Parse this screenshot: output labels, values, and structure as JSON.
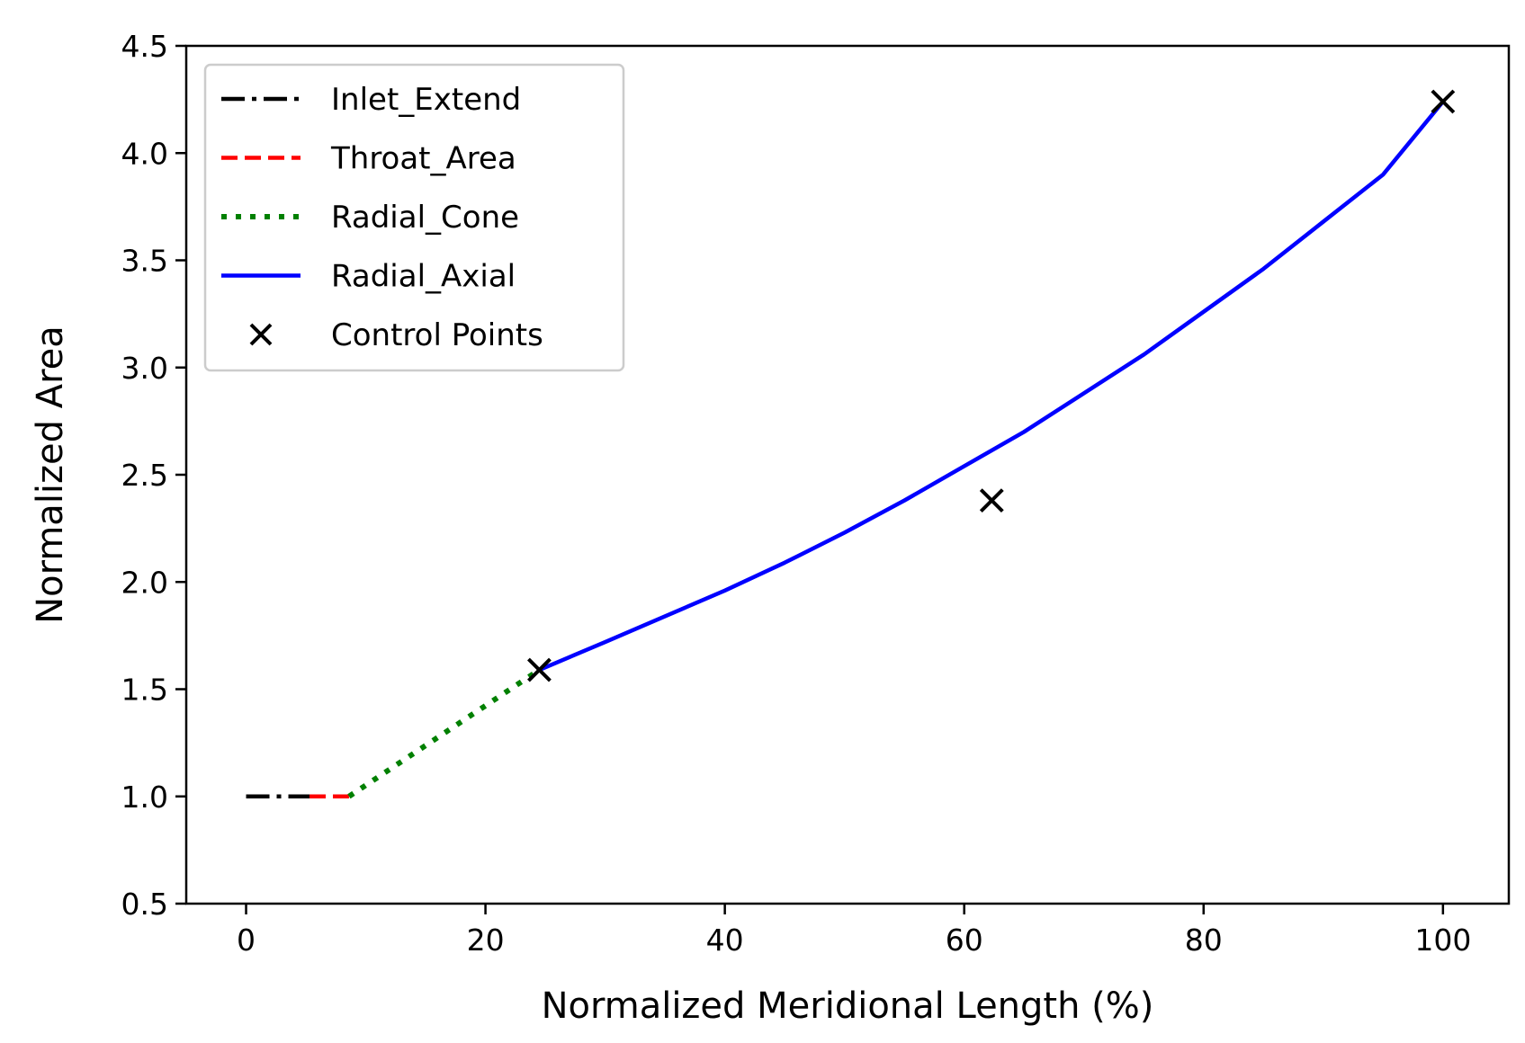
{
  "chart_data": {
    "type": "line",
    "title": "",
    "xlabel": "Normalized Meridional Length (%)",
    "ylabel": "Normalized Area",
    "xlim": [
      -5,
      105.5
    ],
    "ylim": [
      0.5,
      4.5
    ],
    "xticks": [
      0,
      20,
      40,
      60,
      80,
      100
    ],
    "xtick_labels": [
      "0",
      "20",
      "40",
      "60",
      "80",
      "100"
    ],
    "yticks": [
      0.5,
      1.0,
      1.5,
      2.0,
      2.5,
      3.0,
      3.5,
      4.0,
      4.5
    ],
    "ytick_labels": [
      "0.5",
      "1.0",
      "1.5",
      "2.0",
      "2.5",
      "3.0",
      "3.5",
      "4.0",
      "4.5"
    ],
    "grid": false,
    "legend_position": "top-left",
    "series": [
      {
        "name": "Inlet_Extend",
        "color": "#000000",
        "style": "dashdot",
        "x": [
          0,
          5.3
        ],
        "y": [
          1.0,
          1.0
        ]
      },
      {
        "name": "Throat_Area",
        "color": "#ff0000",
        "style": "dashed",
        "x": [
          5.3,
          8.6
        ],
        "y": [
          1.0,
          1.0
        ]
      },
      {
        "name": "Radial_Cone",
        "color": "#008000",
        "style": "dotted",
        "x": [
          8.6,
          24.5
        ],
        "y": [
          1.0,
          1.59
        ]
      },
      {
        "name": "Radial_Axial",
        "color": "#0000ff",
        "style": "solid",
        "x": [
          24.5,
          30,
          35,
          40,
          45,
          50,
          55,
          60,
          65,
          70,
          75,
          80,
          85,
          90,
          95,
          100
        ],
        "y": [
          1.59,
          1.72,
          1.84,
          1.96,
          2.09,
          2.23,
          2.38,
          2.54,
          2.7,
          2.88,
          3.06,
          3.26,
          3.46,
          3.68,
          3.9,
          4.24
        ]
      },
      {
        "name": "Control Points",
        "color": "#000000",
        "style": "marker-x",
        "x": [
          24.5,
          62.3,
          100
        ],
        "y": [
          1.59,
          2.38,
          4.24
        ]
      }
    ]
  }
}
